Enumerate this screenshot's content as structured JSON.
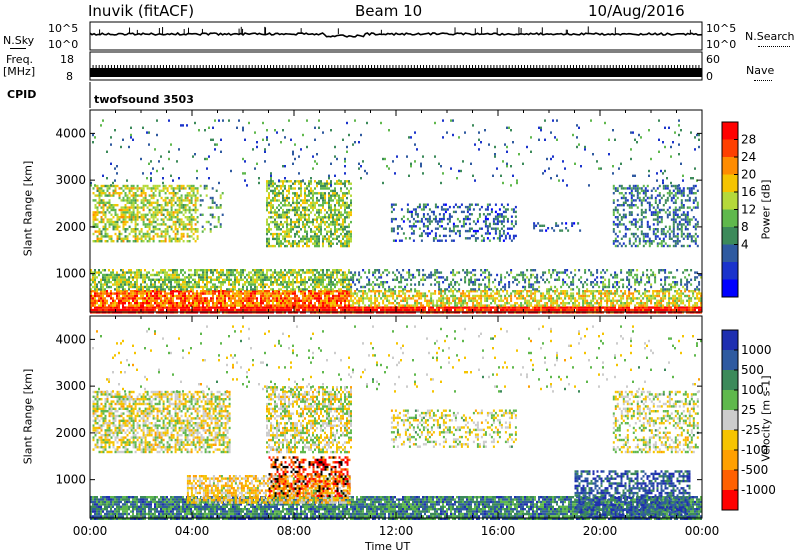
{
  "header": {
    "station": "Inuvik (fitACF)",
    "beam": "Beam 10",
    "date": "10/Aug/2016"
  },
  "sky_panel": {
    "left_label": "N.Sky",
    "left_ticks": [
      "10^5",
      "10^0"
    ],
    "right_label": "N.Search",
    "right_ticks": [
      "10^5",
      "10^0"
    ]
  },
  "freq_panel": {
    "left_label_top": "Freq.",
    "left_label_unit": "[MHz]",
    "left_ticks": [
      "18",
      "8"
    ],
    "right_label": "Nave",
    "right_ticks": [
      "60",
      "0"
    ]
  },
  "cpid": {
    "label": "CPID",
    "value": "twofsound 3503"
  },
  "time_axis": {
    "label": "Time UT",
    "ticks": [
      "00:00",
      "04:00",
      "08:00",
      "12:00",
      "16:00",
      "20:00",
      "00:00"
    ]
  },
  "chart_data": [
    {
      "type": "heatmap",
      "quantity": "Power",
      "ylabel": "Slant Range [km]",
      "yticks": [
        1000,
        2000,
        3000,
        4000
      ],
      "ylim": [
        180,
        4500
      ],
      "xlim_hours": [
        0,
        24
      ],
      "colorbar_label": "Power [dB]",
      "colorbar_ticks": [
        "28",
        "24",
        "20",
        "16",
        "12",
        "8",
        "4"
      ],
      "colorbar_colors": [
        "#ff0000",
        "#ff4000",
        "#ff8c00",
        "#f5c400",
        "#b5d93a",
        "#5fb84c",
        "#3c8a5a",
        "#2f5aa0",
        "#1a33cc",
        "#0000ff"
      ],
      "bands": [
        {
          "t0": 0.0,
          "t1": 24.0,
          "r0": 180,
          "r1": 300,
          "density": 0.95,
          "level": 0.95
        },
        {
          "t0": 0.0,
          "t1": 10.2,
          "r0": 300,
          "r1": 650,
          "density": 0.85,
          "level": 0.8
        },
        {
          "t0": 10.2,
          "t1": 24.0,
          "r0": 300,
          "r1": 650,
          "density": 0.65,
          "level": 0.6
        },
        {
          "t0": 0.0,
          "t1": 10.2,
          "r0": 650,
          "r1": 1100,
          "density": 0.7,
          "level": 0.5
        },
        {
          "t0": 10.2,
          "t1": 24.0,
          "r0": 650,
          "r1": 1100,
          "density": 0.35,
          "level": 0.35
        },
        {
          "t0": 0.1,
          "t1": 4.2,
          "r0": 1700,
          "r1": 2900,
          "density": 0.6,
          "level": 0.55
        },
        {
          "t0": 4.3,
          "t1": 5.2,
          "r0": 1900,
          "r1": 2900,
          "density": 0.2,
          "level": 0.4
        },
        {
          "t0": 6.9,
          "t1": 10.2,
          "r0": 1600,
          "r1": 3000,
          "density": 0.6,
          "level": 0.5
        },
        {
          "t0": 11.8,
          "t1": 16.7,
          "r0": 1700,
          "r1": 2500,
          "density": 0.35,
          "level": 0.25
        },
        {
          "t0": 17.3,
          "t1": 19.2,
          "r0": 1900,
          "r1": 2100,
          "density": 0.3,
          "level": 0.25
        },
        {
          "t0": 20.5,
          "t1": 23.8,
          "r0": 1600,
          "r1": 2900,
          "density": 0.45,
          "level": 0.3
        },
        {
          "t0": 0.0,
          "t1": 24.0,
          "r0": 2900,
          "r1": 4300,
          "density": 0.04,
          "level": 0.3
        }
      ]
    },
    {
      "type": "heatmap",
      "quantity": "Velocity",
      "ylabel": "Slant Range [km]",
      "yticks": [
        1000,
        2000,
        3000,
        4000
      ],
      "ylim": [
        180,
        4500
      ],
      "xlim_hours": [
        0,
        24
      ],
      "colorbar_label": "Velocity [m s-1]",
      "colorbar_ticks": [
        "1000",
        "500",
        "100",
        "25",
        "-25",
        "-100",
        "-500",
        "-1000"
      ],
      "colorbar_colors": [
        "#1f2fb0",
        "#2f5aa0",
        "#3c8a5a",
        "#5fb84c",
        "#cccccc",
        "#f5c400",
        "#ffa000",
        "#ff6000",
        "#ff0000"
      ],
      "bands": [
        {
          "t0": 0.0,
          "t1": 24.0,
          "r0": 180,
          "r1": 650,
          "density": 0.9,
          "level": 0.75
        },
        {
          "t0": 3.8,
          "t1": 10.2,
          "r0": 500,
          "r1": 1100,
          "density": 0.7,
          "level": 0.4
        },
        {
          "t0": 7.0,
          "t1": 10.2,
          "r0": 650,
          "r1": 1500,
          "density": 0.5,
          "level": 0.1
        },
        {
          "t0": 19.0,
          "t1": 23.5,
          "r0": 180,
          "r1": 1200,
          "density": 0.6,
          "level": 0.85
        },
        {
          "t0": 0.1,
          "t1": 5.5,
          "r0": 1600,
          "r1": 2900,
          "density": 0.65,
          "level": 0.48
        },
        {
          "t0": 6.9,
          "t1": 10.2,
          "r0": 1600,
          "r1": 3000,
          "density": 0.6,
          "level": 0.48
        },
        {
          "t0": 11.8,
          "t1": 16.7,
          "r0": 1700,
          "r1": 2500,
          "density": 0.35,
          "level": 0.5
        },
        {
          "t0": 20.5,
          "t1": 23.8,
          "r0": 1600,
          "r1": 2900,
          "density": 0.4,
          "level": 0.5
        },
        {
          "t0": 0.0,
          "t1": 24.0,
          "r0": 2900,
          "r1": 4300,
          "density": 0.04,
          "level": 0.5
        }
      ]
    }
  ]
}
